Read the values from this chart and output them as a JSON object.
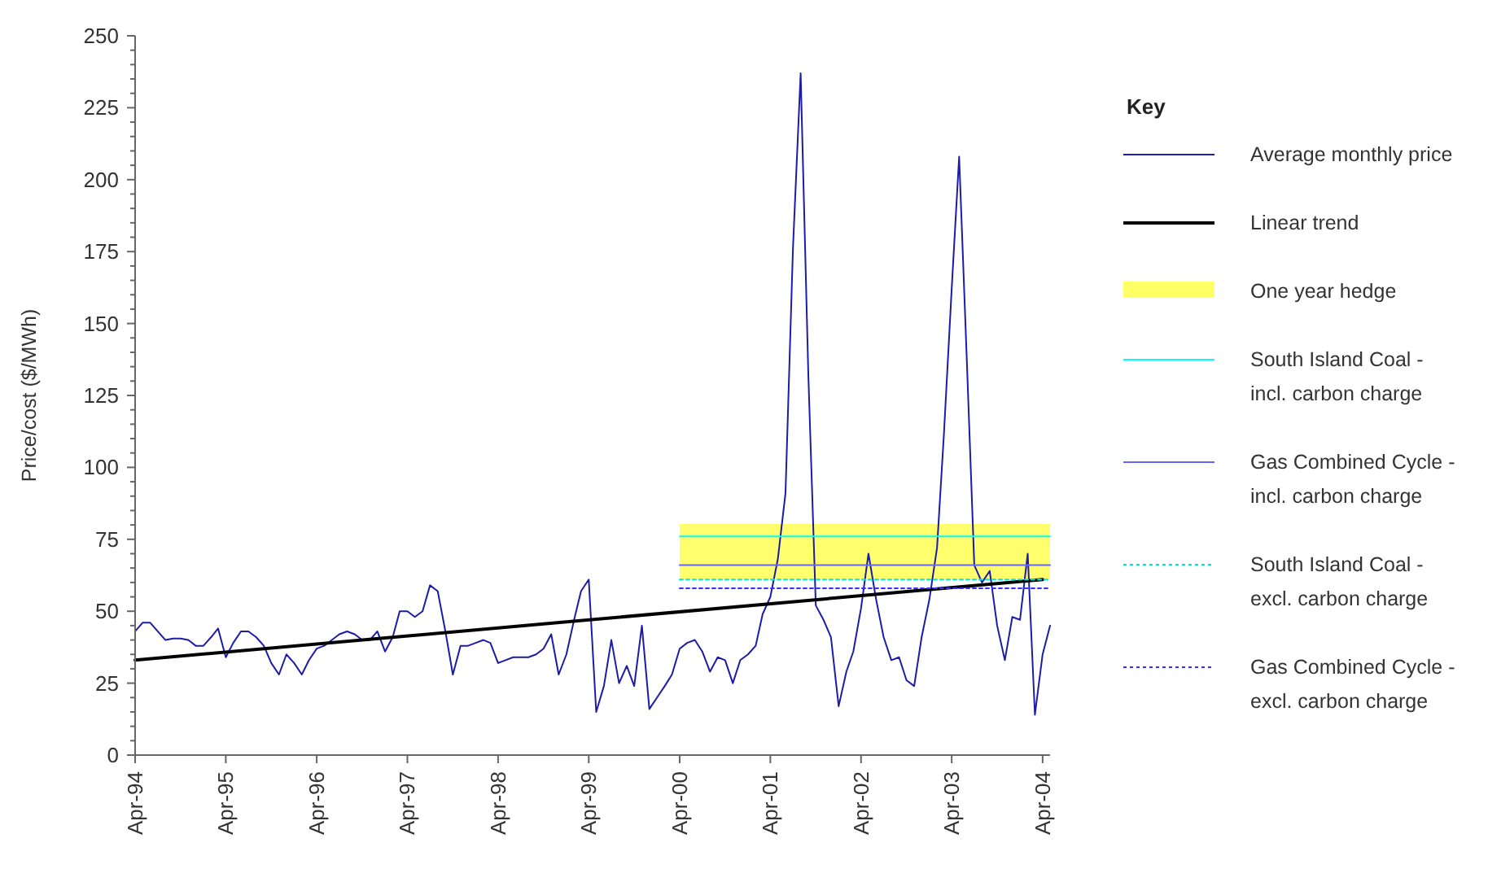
{
  "chart_data": {
    "type": "line",
    "ylabel": "Price/cost ($/MWh)",
    "legend_title": "Key",
    "legend": "right",
    "grid": false,
    "marker": "none",
    "xlim": [
      "1994-04",
      "2004-05"
    ],
    "xticks": [
      {
        "value": "1994-04",
        "label": "Apr-94"
      },
      {
        "value": "1995-04",
        "label": "Apr-95"
      },
      {
        "value": "1996-04",
        "label": "Apr-96"
      },
      {
        "value": "1997-04",
        "label": "Apr-97"
      },
      {
        "value": "1998-04",
        "label": "Apr-98"
      },
      {
        "value": "1999-04",
        "label": "Apr-99"
      },
      {
        "value": "2000-04",
        "label": "Apr-00"
      },
      {
        "value": "2001-04",
        "label": "Apr-01"
      },
      {
        "value": "2002-04",
        "label": "Apr-02"
      },
      {
        "value": "2003-04",
        "label": "Apr-03"
      },
      {
        "value": "2004-04",
        "label": "Apr-04"
      }
    ],
    "ylim": [
      0,
      250
    ],
    "yticks": [
      0,
      {
        "value": 5,
        "label": null
      },
      {
        "value": 10,
        "label": null
      },
      {
        "value": 15,
        "label": null
      },
      {
        "value": 20,
        "label": null
      },
      25,
      {
        "value": 30,
        "label": null
      },
      {
        "value": 35,
        "label": null
      },
      {
        "value": 40,
        "label": null
      },
      {
        "value": 45,
        "label": null
      },
      50,
      {
        "value": 55,
        "label": null
      },
      {
        "value": 60,
        "label": null
      },
      {
        "value": 65,
        "label": null
      },
      {
        "value": 70,
        "label": null
      },
      75,
      {
        "value": 80,
        "label": null
      },
      {
        "value": 85,
        "label": null
      },
      {
        "value": 90,
        "label": null
      },
      {
        "value": 95,
        "label": null
      },
      100,
      {
        "value": 105,
        "label": null
      },
      {
        "value": 110,
        "label": null
      },
      {
        "value": 115,
        "label": null
      },
      {
        "value": 120,
        "label": null
      },
      125,
      {
        "value": 130,
        "label": null
      },
      {
        "value": 135,
        "label": null
      },
      {
        "value": 140,
        "label": null
      },
      {
        "value": 145,
        "label": null
      },
      150,
      {
        "value": 155,
        "label": null
      },
      {
        "value": 160,
        "label": null
      },
      {
        "value": 165,
        "label": null
      },
      {
        "value": 170,
        "label": null
      },
      175,
      {
        "value": 180,
        "label": null
      },
      {
        "value": 185,
        "label": null
      },
      {
        "value": 190,
        "label": null
      },
      {
        "value": 195,
        "label": null
      },
      200,
      {
        "value": 205,
        "label": null
      },
      {
        "value": 210,
        "label": null
      },
      {
        "value": 215,
        "label": null
      },
      {
        "value": 220,
        "label": null
      },
      225,
      {
        "value": 230,
        "label": null
      },
      {
        "value": 235,
        "label": null
      },
      {
        "value": 240,
        "label": null
      },
      {
        "value": 245,
        "label": null
      },
      250
    ],
    "series": [
      {
        "name": "Average monthly price",
        "color": "#1c1ca8",
        "line_style": "solid",
        "x": [
          "1994-04",
          "1994-05",
          "1994-06",
          "1994-07",
          "1994-08",
          "1994-09",
          "1994-10",
          "1994-11",
          "1994-12",
          "1995-01",
          "1995-02",
          "1995-03",
          "1995-04",
          "1995-05",
          "1995-06",
          "1995-07",
          "1995-08",
          "1995-09",
          "1995-10",
          "1995-11",
          "1995-12",
          "1996-01",
          "1996-02",
          "1996-03",
          "1996-04",
          "1996-05",
          "1996-06",
          "1996-07",
          "1996-08",
          "1996-09",
          "1996-10",
          "1996-11",
          "1996-12",
          "1997-01",
          "1997-02",
          "1997-03",
          "1997-04",
          "1997-05",
          "1997-06",
          "1997-07",
          "1997-08",
          "1997-09",
          "1997-10",
          "1997-11",
          "1997-12",
          "1998-01",
          "1998-02",
          "1998-03",
          "1998-04",
          "1998-05",
          "1998-06",
          "1998-07",
          "1998-08",
          "1998-09",
          "1998-10",
          "1998-11",
          "1998-12",
          "1999-01",
          "1999-02",
          "1999-03",
          "1999-04",
          "1999-05",
          "1999-06",
          "1999-07",
          "1999-08",
          "1999-09",
          "1999-10",
          "1999-11",
          "1999-12",
          "2000-01",
          "2000-02",
          "2000-03",
          "2000-04",
          "2000-05",
          "2000-06",
          "2000-07",
          "2000-08",
          "2000-09",
          "2000-10",
          "2000-11",
          "2000-12",
          "2001-01",
          "2001-02",
          "2001-03",
          "2001-04",
          "2001-05",
          "2001-06",
          "2001-07",
          "2001-08",
          "2001-09",
          "2001-10",
          "2001-11",
          "2001-12",
          "2002-01",
          "2002-02",
          "2002-03",
          "2002-04",
          "2002-05",
          "2002-06",
          "2002-07",
          "2002-08",
          "2002-09",
          "2002-10",
          "2002-11",
          "2002-12",
          "2003-01",
          "2003-02",
          "2003-03",
          "2003-04",
          "2003-05",
          "2003-06",
          "2003-07",
          "2003-08",
          "2003-09",
          "2003-10",
          "2003-11",
          "2003-12",
          "2004-01",
          "2004-02",
          "2004-03",
          "2004-04",
          "2004-05"
        ],
        "values": [
          43,
          46,
          46,
          43,
          40,
          40.5,
          40.5,
          40,
          38,
          38,
          41,
          44,
          34,
          39,
          43,
          43,
          41,
          38,
          32,
          28,
          35,
          32,
          28,
          33,
          37,
          38,
          40,
          42,
          43,
          42,
          40,
          40,
          43,
          36,
          41,
          50,
          50,
          48,
          50,
          59,
          57,
          43,
          28,
          38,
          38,
          39,
          40,
          39,
          32,
          33,
          34,
          34,
          34,
          35,
          37,
          42,
          28,
          35,
          47,
          57,
          61,
          15,
          24,
          40,
          25,
          31,
          24,
          45,
          16,
          20,
          24,
          28,
          37,
          39,
          40,
          36,
          29,
          34,
          33,
          25,
          33,
          35,
          38,
          49,
          55,
          68,
          91,
          176,
          237,
          132,
          52,
          47,
          41,
          17,
          29,
          36,
          51,
          70,
          54,
          41,
          33,
          34,
          26,
          24,
          41,
          54,
          72,
          112,
          162,
          208,
          137,
          66,
          60,
          64,
          45,
          33,
          48,
          47,
          70,
          14,
          35,
          45
        ]
      },
      {
        "name": "Linear trend",
        "color": "#000000",
        "line_style": "solid",
        "x": [
          "1994-04",
          "2004-04"
        ],
        "values": [
          33,
          61
        ]
      },
      {
        "name": "One year hedge",
        "color": "#ffff66",
        "x": [
          "2000-04",
          "2004-05"
        ],
        "values": [
          80,
          80
        ],
        "lower": [
          61,
          61
        ],
        "upper": [
          80,
          80
        ]
      },
      {
        "name": "South Island Coal - incl. carbon charge",
        "color": "#00ffff",
        "line_style": "solid",
        "x": [
          "2000-04",
          "2004-05"
        ],
        "values": [
          76,
          76
        ]
      },
      {
        "name": "Gas Combined Cycle - incl. carbon charge",
        "color": "#6666ff",
        "line_style": "solid",
        "x": [
          "2000-04",
          "2004-05"
        ],
        "values": [
          66,
          66
        ]
      },
      {
        "name": "South Island Coal - excl. carbon charge",
        "color": "#00e5e5",
        "line_style": "dotted",
        "x": [
          "2000-04",
          "2004-05"
        ],
        "values": [
          61,
          61
        ]
      },
      {
        "name": "Gas Combined Cycle - excl. carbon charge",
        "color": "#3333ff",
        "line_style": "dotted",
        "x": [
          "2000-04",
          "2004-05"
        ],
        "values": [
          58,
          58
        ]
      }
    ]
  }
}
